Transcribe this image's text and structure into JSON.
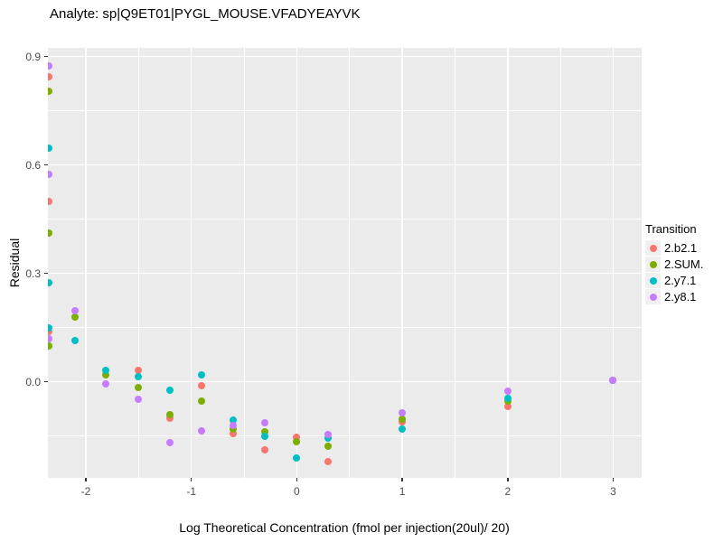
{
  "chart_data": {
    "type": "scatter",
    "title": "Analyte: sp|Q9ET01|PYGL_MOUSE.VFADYEAYVK",
    "xlabel": "Log Theoretical Concentration (fmol per injection(20ul)/ 20)",
    "ylabel": "Residual",
    "legend_title": "Transition",
    "legend_position": "right",
    "panel_background": "#EBEBEB",
    "gridline_color": "#FFFFFF",
    "tick_label_color": "#4D4D4D",
    "grid": true,
    "xlim": [
      -2.36,
      3.27
    ],
    "ylim": [
      -0.266,
      0.924
    ],
    "x_ticks": {
      "values": [
        -2,
        -1,
        0,
        1,
        2,
        3
      ],
      "labels": [
        "-2",
        "-1",
        "0",
        "1",
        "2",
        "3"
      ]
    },
    "x_minor": [
      -1.5,
      -0.5,
      0.5,
      1.5,
      2.5
    ],
    "y_ticks": {
      "values": [
        0.0,
        0.3,
        0.6,
        0.9
      ],
      "labels": [
        "0.0",
        "0.3",
        "0.6",
        "0.9"
      ]
    },
    "y_minor": [
      -0.15,
      0.15,
      0.45,
      0.75
    ],
    "series": [
      {
        "name": "2.b2.1",
        "color": "#F8766D",
        "points": [
          [
            -2.35,
            0.845
          ],
          [
            -2.35,
            0.5
          ],
          [
            -2.35,
            0.138
          ],
          [
            -1.5,
            0.032
          ],
          [
            -1.2,
            -0.1
          ],
          [
            -0.9,
            -0.01
          ],
          [
            -0.6,
            -0.143
          ],
          [
            -0.3,
            -0.188
          ],
          [
            0.0,
            -0.153
          ],
          [
            0.3,
            -0.22
          ],
          [
            1.0,
            -0.112
          ],
          [
            2.0,
            -0.068
          ],
          [
            3.0,
            0.004
          ]
        ]
      },
      {
        "name": "2.SUM.",
        "color": "#7CAE00",
        "points": [
          [
            -2.35,
            0.803
          ],
          [
            -2.35,
            0.411
          ],
          [
            -2.35,
            0.1
          ],
          [
            -2.1,
            0.178
          ],
          [
            -1.81,
            0.018
          ],
          [
            -1.5,
            -0.015
          ],
          [
            -1.2,
            -0.09
          ],
          [
            -0.9,
            -0.054
          ],
          [
            -0.6,
            -0.132
          ],
          [
            -0.3,
            -0.138
          ],
          [
            0.0,
            -0.167
          ],
          [
            0.3,
            -0.178
          ],
          [
            1.0,
            -0.103
          ],
          [
            2.0,
            -0.053
          ],
          [
            3.0,
            0.004
          ]
        ]
      },
      {
        "name": "2.y7.1",
        "color": "#00BFC4",
        "points": [
          [
            -2.35,
            0.647
          ],
          [
            -2.35,
            0.273
          ],
          [
            -2.35,
            0.15
          ],
          [
            -2.1,
            0.115
          ],
          [
            -1.81,
            0.032
          ],
          [
            -1.5,
            0.014
          ],
          [
            -1.2,
            -0.023
          ],
          [
            -0.9,
            0.018
          ],
          [
            -0.6,
            -0.105
          ],
          [
            -0.3,
            -0.15
          ],
          [
            0.0,
            -0.212
          ],
          [
            0.3,
            -0.157
          ],
          [
            1.0,
            -0.131
          ],
          [
            2.0,
            -0.047
          ],
          [
            3.0,
            0.003
          ]
        ]
      },
      {
        "name": "2.y8.1",
        "color": "#C77CFF",
        "points": [
          [
            -2.35,
            0.873
          ],
          [
            -2.35,
            0.573
          ],
          [
            -2.35,
            0.118
          ],
          [
            -2.1,
            0.197
          ],
          [
            -1.81,
            -0.006
          ],
          [
            -1.5,
            -0.049
          ],
          [
            -1.2,
            -0.168
          ],
          [
            -0.9,
            -0.137
          ],
          [
            -0.6,
            -0.122
          ],
          [
            -0.3,
            -0.113
          ],
          [
            0.3,
            -0.146
          ],
          [
            1.0,
            -0.087
          ],
          [
            2.0,
            -0.026
          ],
          [
            3.0,
            0.005
          ]
        ]
      }
    ]
  }
}
